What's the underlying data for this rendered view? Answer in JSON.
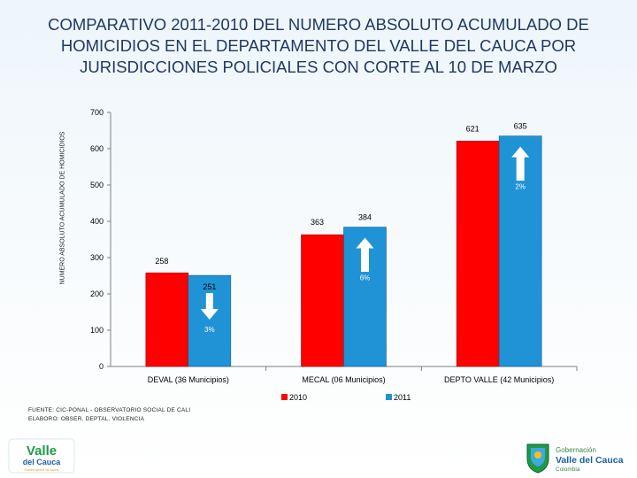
{
  "slide": {
    "title_lines": [
      "COMPARATIVO 2011-2010 DEL NUMERO ABSOLUTO ACUMULADO DE",
      "HOMICIDIOS EN EL DEPARTAMENTO DEL VALLE DEL CAUCA POR",
      "JURISDICCIONES POLICIALES CON CORTE AL 10 DE MARZO"
    ],
    "source_line": "FUENTE: CIC-PONAL - OBSERVATORIO SOCIAL DE CALI",
    "author_line": "ELABORO: OBSER. DEPTAL. VIOLENCIA",
    "logo_left_text": [
      "Valle",
      "del Cauca",
      "Gobernación de todos"
    ],
    "logo_right_text": [
      "Gobernación",
      "Valle del Cauca",
      "Colombia"
    ]
  },
  "chart_data": {
    "type": "bar",
    "title": "",
    "xlabel": "",
    "ylabel": "NUMERO ABSOLUTO ACUMULADO DE HOMICIDIOS",
    "ylim": [
      0,
      700
    ],
    "yticks": [
      0,
      100,
      200,
      300,
      400,
      500,
      600,
      700
    ],
    "grid": false,
    "legend_position": "bottom",
    "categories": [
      "DEVAL (36 Municipios)",
      "MECAL (06 Municipios)",
      "DEPTO VALLE (42 Municipios)"
    ],
    "series": [
      {
        "name": "2010",
        "color": "#ff0000",
        "values": [
          258,
          363,
          621
        ]
      },
      {
        "name": "2011",
        "color": "#1f93d6",
        "values": [
          251,
          384,
          635
        ]
      }
    ],
    "annotations": [
      {
        "category": "DEVAL (36 Municipios)",
        "text": "3%",
        "direction": "down"
      },
      {
        "category": "MECAL (06 Municipios)",
        "text": "6%",
        "direction": "up"
      },
      {
        "category": "DEPTO VALLE (42 Municipios)",
        "text": "2%",
        "direction": "up"
      }
    ]
  }
}
